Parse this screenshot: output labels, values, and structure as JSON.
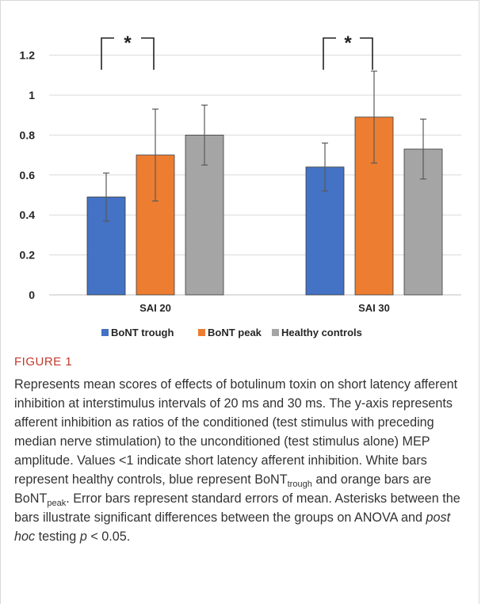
{
  "chart_data": {
    "type": "bar",
    "categories": [
      "SAI 20",
      "SAI 30"
    ],
    "series": [
      {
        "name": "BoNT trough",
        "color": "#4472c4",
        "values": [
          0.49,
          0.64
        ],
        "error": [
          0.12,
          0.12
        ]
      },
      {
        "name": "BoNT peak",
        "color": "#ed7d31",
        "values": [
          0.7,
          0.89
        ],
        "error": [
          0.23,
          0.23
        ]
      },
      {
        "name": "Healthy controls",
        "color": "#a5a5a5",
        "values": [
          0.8,
          0.73
        ],
        "error": [
          0.15,
          0.15
        ]
      }
    ],
    "yticks": [
      "0",
      "0.2",
      "0.4",
      "0.6",
      "0.8",
      "1",
      "1.2"
    ],
    "ylim": [
      0,
      1.3
    ],
    "grid": true,
    "legend_position": "bottom",
    "annotations": [
      "*",
      "*"
    ]
  },
  "figure": {
    "label": "FIGURE 1",
    "caption": {
      "p1": "Represents mean scores of effects of botulinum toxin on short latency afferent inhibition at interstimulus intervals of 20 ms and 30 ms. The y-axis represents afferent inhibition as ratios of the conditioned (test stimulus with preceding median nerve stimulation) to the unconditioned (test stimulus alone) MEP amplitude. Values <1 indicate short latency afferent inhibition. White bars represent healthy controls, blue represent BoNT",
      "sub1": "trough",
      "p2": " and orange bars are BoNT",
      "sub2": "peak",
      "p3": ". Error bars represent standard errors of mean. Asterisks between the bars illustrate significant differences between the groups on ANOVA and ",
      "italic1": "post hoc",
      "p4": " testing ",
      "italic2": "p",
      "p5": " < 0.05."
    }
  }
}
